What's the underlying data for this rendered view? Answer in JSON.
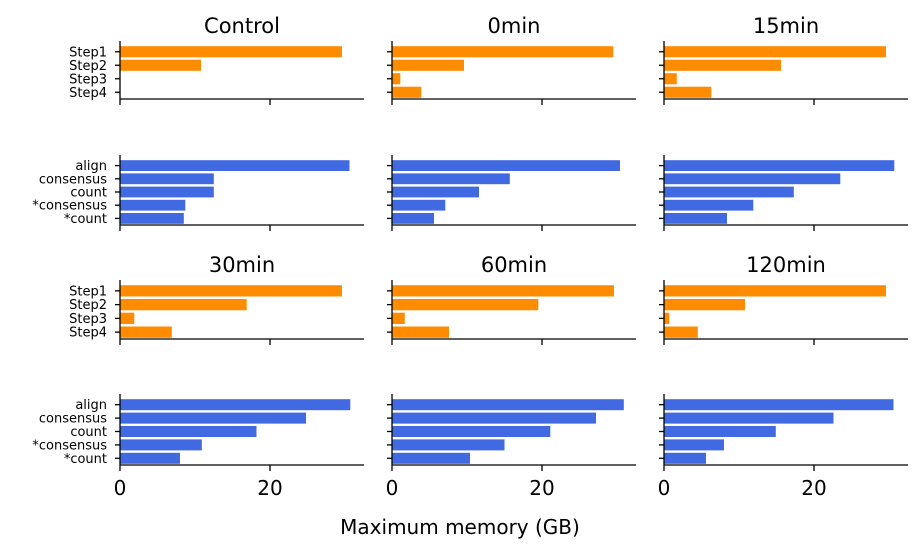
{
  "chart_data": {
    "type": "bar",
    "orientation": "horizontal",
    "xlabel": "Maximum memory (GB)",
    "xticks": [
      0,
      20
    ],
    "xlim": [
      0,
      32
    ],
    "colors": {
      "steps": "#ff8c00",
      "tools": "#4169e1"
    },
    "panels": [
      {
        "title": "Control",
        "row": 0,
        "col": 0,
        "group": "steps",
        "categories": [
          "Step1",
          "Step2",
          "Step3",
          "Step4"
        ],
        "values": [
          29.6,
          10.8,
          0,
          0
        ]
      },
      {
        "title": "0min",
        "row": 0,
        "col": 1,
        "group": "steps",
        "categories": [
          "Step1",
          "Step2",
          "Step3",
          "Step4"
        ],
        "values": [
          29.5,
          9.6,
          1.1,
          3.9
        ]
      },
      {
        "title": "15min",
        "row": 0,
        "col": 2,
        "group": "steps",
        "categories": [
          "Step1",
          "Step2",
          "Step3",
          "Step4"
        ],
        "values": [
          29.6,
          15.6,
          1.7,
          6.3
        ]
      },
      {
        "title": "",
        "row": 1,
        "col": 0,
        "group": "tools",
        "categories": [
          "align",
          "consensus",
          "count",
          "*consensus",
          "*count"
        ],
        "values": [
          30.6,
          12.5,
          12.5,
          8.7,
          8.5
        ]
      },
      {
        "title": "",
        "row": 1,
        "col": 1,
        "group": "tools",
        "categories": [
          "align",
          "consensus",
          "count",
          "*consensus",
          "*count"
        ],
        "values": [
          30.4,
          15.7,
          11.6,
          7.1,
          5.6
        ]
      },
      {
        "title": "",
        "row": 1,
        "col": 2,
        "group": "tools",
        "categories": [
          "align",
          "consensus",
          "count",
          "*consensus",
          "*count"
        ],
        "values": [
          30.7,
          23.5,
          17.3,
          11.9,
          8.4
        ]
      },
      {
        "title": "30min",
        "row": 2,
        "col": 0,
        "group": "steps",
        "categories": [
          "Step1",
          "Step2",
          "Step3",
          "Step4"
        ],
        "values": [
          29.6,
          16.9,
          1.9,
          6.9
        ]
      },
      {
        "title": "60min",
        "row": 2,
        "col": 1,
        "group": "steps",
        "categories": [
          "Step1",
          "Step2",
          "Step3",
          "Step4"
        ],
        "values": [
          29.6,
          19.5,
          1.7,
          7.6
        ]
      },
      {
        "title": "120min",
        "row": 2,
        "col": 2,
        "group": "steps",
        "categories": [
          "Step1",
          "Step2",
          "Step3",
          "Step4"
        ],
        "values": [
          29.6,
          10.8,
          0.7,
          4.5
        ]
      },
      {
        "title": "",
        "row": 3,
        "col": 0,
        "group": "tools",
        "categories": [
          "align",
          "consensus",
          "count",
          "*consensus",
          "*count"
        ],
        "values": [
          30.7,
          24.8,
          18.2,
          10.9,
          8.0
        ]
      },
      {
        "title": "",
        "row": 3,
        "col": 1,
        "group": "tools",
        "categories": [
          "align",
          "consensus",
          "count",
          "*consensus",
          "*count"
        ],
        "values": [
          30.9,
          27.2,
          21.1,
          15.0,
          10.4
        ]
      },
      {
        "title": "",
        "row": 3,
        "col": 2,
        "group": "tools",
        "categories": [
          "align",
          "consensus",
          "count",
          "*consensus",
          "*count"
        ],
        "values": [
          30.6,
          22.6,
          14.9,
          8.0,
          5.6
        ]
      }
    ]
  }
}
